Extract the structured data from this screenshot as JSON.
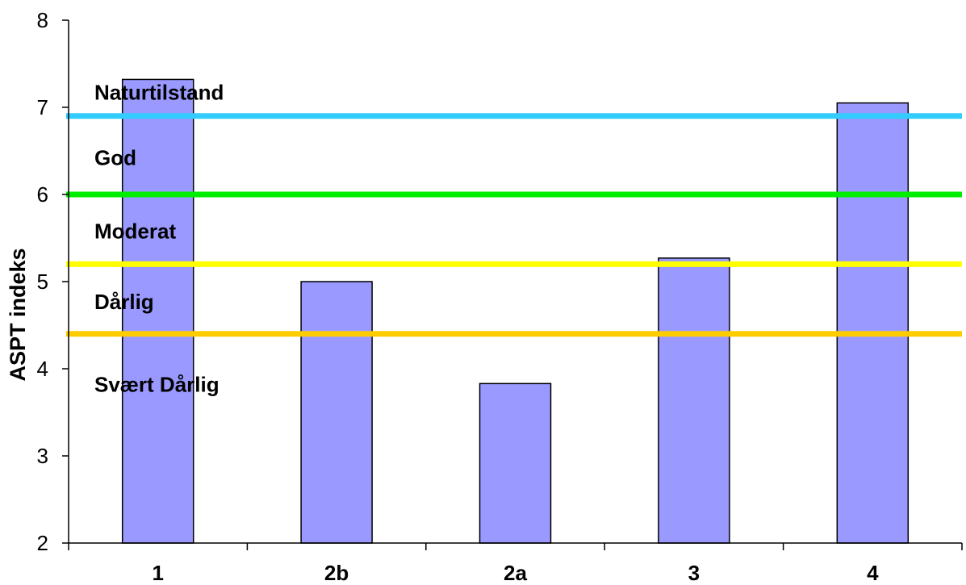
{
  "chart_data": {
    "type": "bar",
    "title": "",
    "xlabel": "",
    "ylabel": "ASPT indeks",
    "ylim": [
      2,
      8
    ],
    "yticks": [
      "2",
      "3",
      "4",
      "5",
      "6",
      "7",
      "8"
    ],
    "categories": [
      "1",
      "2b",
      "2a",
      "3",
      "4"
    ],
    "values": [
      7.32,
      5.0,
      3.83,
      5.27,
      7.05
    ],
    "bar_color": "#9999ff",
    "grid": false,
    "legend": "none",
    "thresholds": [
      {
        "value": 6.9,
        "color": "#33ccff"
      },
      {
        "value": 6.0,
        "color": "#00ee00"
      },
      {
        "value": 5.2,
        "color": "#ffff00"
      },
      {
        "value": 4.4,
        "color": "#ffcc00"
      }
    ],
    "zones": [
      {
        "label": "Naturtilstand",
        "y": 7.17
      },
      {
        "label": "God",
        "y": 6.42
      },
      {
        "label": "Moderat",
        "y": 5.58
      },
      {
        "label": "Dårlig",
        "y": 4.77
      },
      {
        "label": "Svært Dårlig",
        "y": 3.82
      }
    ]
  }
}
